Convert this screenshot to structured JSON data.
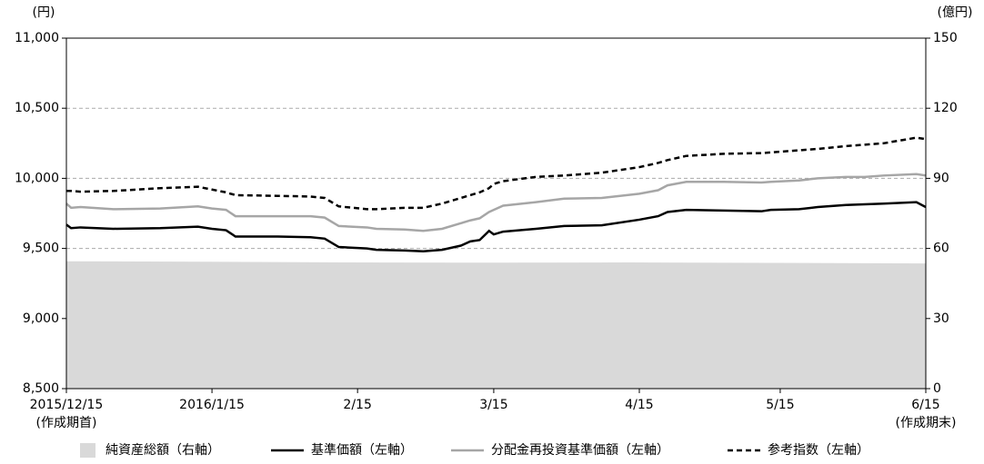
{
  "chart_data": {
    "type": "line",
    "y_label": "(円)",
    "y2_label": "(億円)",
    "xlim": [
      0,
      183
    ],
    "xticks": [
      {
        "value": 0,
        "label": "2015/12/15"
      },
      {
        "value": 31,
        "label": "2016/1/15"
      },
      {
        "value": 62,
        "label": "2/15"
      },
      {
        "value": 91,
        "label": "3/15"
      },
      {
        "value": 122,
        "label": "4/15"
      },
      {
        "value": 152,
        "label": "5/15"
      },
      {
        "value": 183,
        "label": "6/15"
      }
    ],
    "start_note": "(作成期首)",
    "end_note": "(作成期末)",
    "ylim": [
      8500,
      11000
    ],
    "yticks": [
      {
        "value": 8500,
        "label": "8,500"
      },
      {
        "value": 9000,
        "label": "9,000"
      },
      {
        "value": 9500,
        "label": "9,500"
      },
      {
        "value": 10000,
        "label": "10,000"
      },
      {
        "value": 10500,
        "label": "10,500"
      },
      {
        "value": 11000,
        "label": "11,000"
      }
    ],
    "y2lim": [
      0,
      150
    ],
    "y2ticks": [
      0,
      30,
      60,
      90,
      120,
      150
    ],
    "grid": true,
    "series": [
      {
        "name": "純資産総額（右軸）",
        "color": "#d9d9d9",
        "axis": "y2",
        "style": "area",
        "x": [
          0,
          30,
          60,
          90,
          120,
          150,
          183
        ],
        "values": [
          54.5,
          54.3,
          54.0,
          53.9,
          54.0,
          53.8,
          53.6
        ]
      },
      {
        "name": "基準価額（左軸）",
        "color": "#000000",
        "style": "line",
        "x": [
          0,
          1,
          3,
          10,
          20,
          28,
          31,
          34,
          36,
          45,
          52,
          55,
          58,
          64,
          66,
          72,
          76,
          80,
          84,
          86,
          88,
          90,
          91,
          93,
          100,
          106,
          114,
          122,
          126,
          128,
          132,
          140,
          148,
          150,
          156,
          160,
          166,
          170,
          174,
          181,
          183
        ],
        "values": [
          9670,
          9645,
          9650,
          9640,
          9645,
          9655,
          9640,
          9630,
          9585,
          9585,
          9580,
          9570,
          9510,
          9500,
          9490,
          9485,
          9480,
          9490,
          9520,
          9550,
          9560,
          9625,
          9600,
          9620,
          9640,
          9660,
          9665,
          9705,
          9730,
          9760,
          9775,
          9770,
          9765,
          9775,
          9780,
          9795,
          9810,
          9815,
          9820,
          9830,
          9795
        ]
      },
      {
        "name": "分配金再投資基準価額（左軸）",
        "color": "#a6a6a6",
        "style": "line",
        "x": [
          0,
          1,
          3,
          10,
          20,
          28,
          31,
          34,
          36,
          45,
          52,
          55,
          58,
          64,
          66,
          72,
          76,
          80,
          84,
          86,
          88,
          90,
          91,
          93,
          100,
          106,
          114,
          122,
          126,
          128,
          132,
          140,
          148,
          150,
          156,
          160,
          166,
          170,
          174,
          181,
          183
        ],
        "values": [
          9820,
          9790,
          9795,
          9780,
          9785,
          9800,
          9785,
          9775,
          9730,
          9730,
          9730,
          9720,
          9660,
          9650,
          9640,
          9635,
          9625,
          9640,
          9680,
          9700,
          9715,
          9760,
          9775,
          9805,
          9830,
          9855,
          9860,
          9890,
          9915,
          9950,
          9975,
          9975,
          9970,
          9975,
          9985,
          10000,
          10010,
          10010,
          10020,
          10030,
          10020
        ]
      },
      {
        "name": "参考指数（左軸）",
        "color": "#000000",
        "style": "line",
        "dashed": true,
        "x": [
          0,
          1,
          3,
          10,
          20,
          28,
          31,
          34,
          36,
          45,
          52,
          55,
          58,
          64,
          66,
          72,
          76,
          80,
          84,
          86,
          88,
          90,
          91,
          93,
          100,
          106,
          114,
          122,
          126,
          128,
          132,
          140,
          148,
          150,
          156,
          160,
          166,
          170,
          174,
          181,
          183
        ],
        "values": [
          9910,
          9910,
          9905,
          9910,
          9930,
          9940,
          9920,
          9900,
          9880,
          9875,
          9870,
          9860,
          9800,
          9780,
          9780,
          9790,
          9790,
          9820,
          9860,
          9880,
          9900,
          9930,
          9960,
          9980,
          10010,
          10020,
          10040,
          10080,
          10110,
          10130,
          10160,
          10175,
          10180,
          10185,
          10200,
          10210,
          10230,
          10240,
          10250,
          10290,
          10280
        ]
      }
    ]
  }
}
